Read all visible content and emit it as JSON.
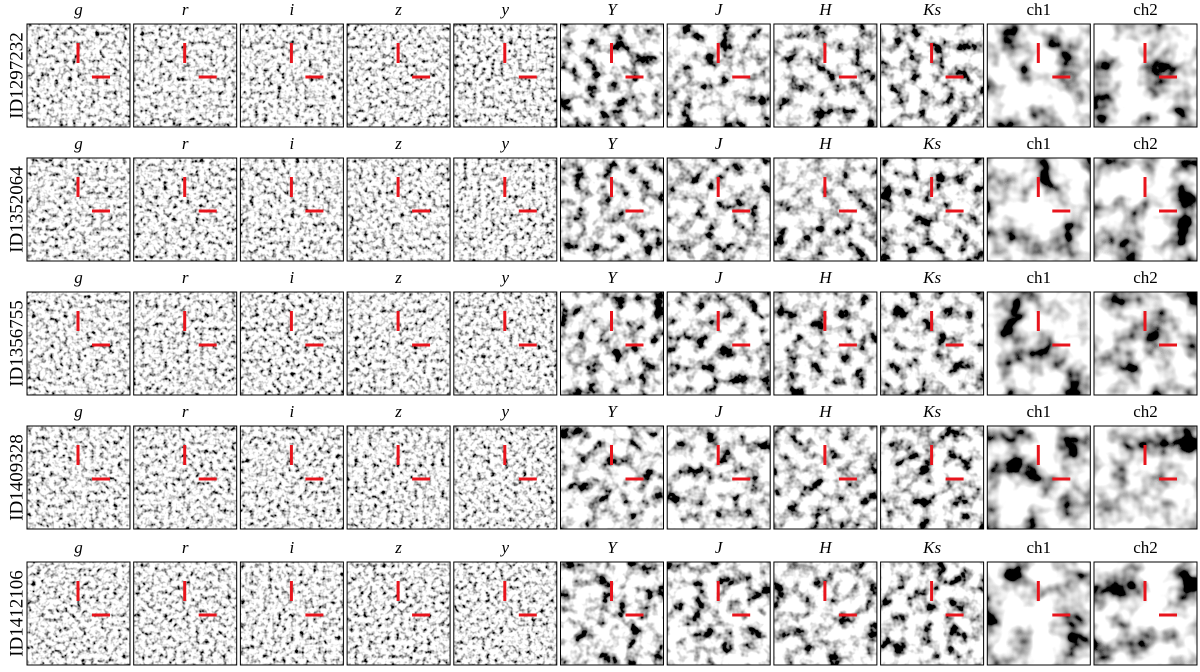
{
  "bands": [
    "g",
    "r",
    "i",
    "z",
    "y",
    "Y",
    "J",
    "H",
    "Ks",
    "ch1",
    "ch2"
  ],
  "rows": [
    "ID1297232",
    "ID1352064",
    "ID1356755",
    "ID1409328",
    "ID1412106"
  ]
}
